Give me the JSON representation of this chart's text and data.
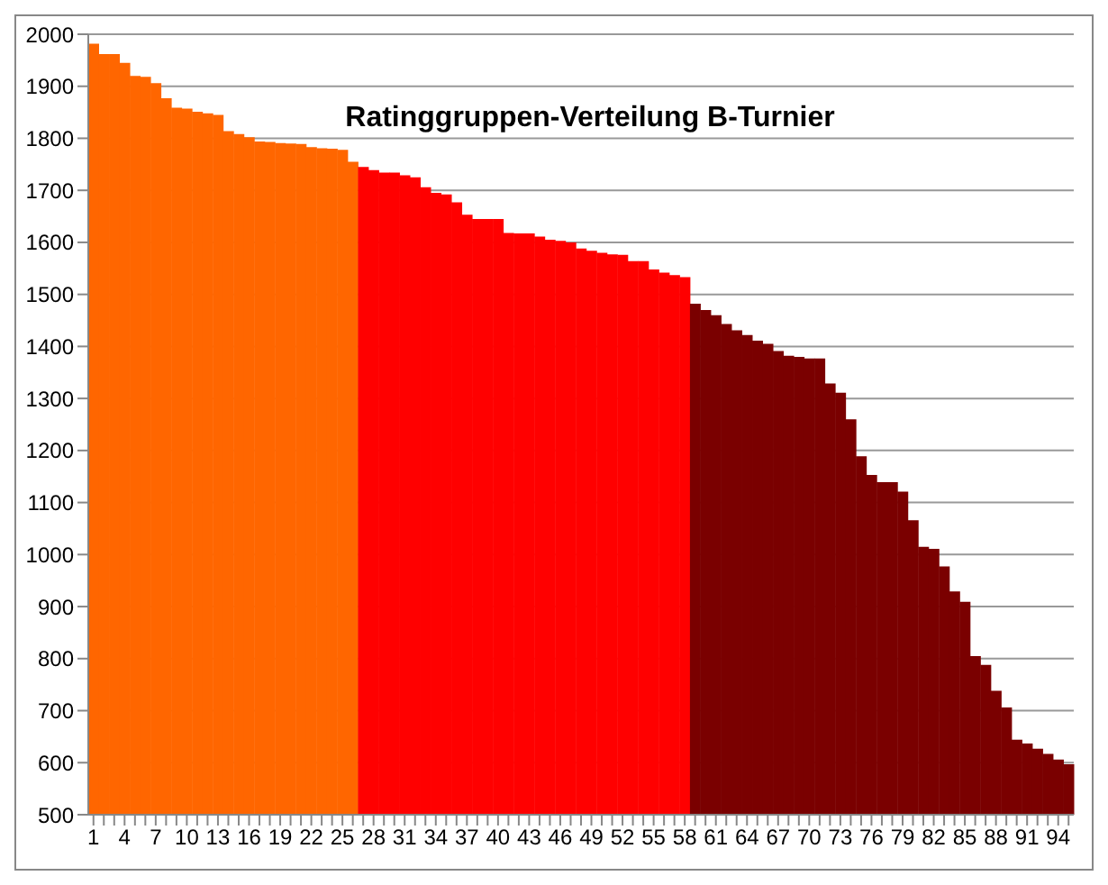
{
  "chart_data": {
    "type": "bar",
    "title": "Ratinggruppen-Verteilung B-Turnier",
    "categories": [
      "1",
      null,
      null,
      "4",
      null,
      null,
      "7",
      null,
      null,
      "10",
      null,
      null,
      "13",
      null,
      null,
      "16",
      null,
      null,
      "19",
      null,
      null,
      "22",
      null,
      null,
      "25",
      null,
      null,
      "28",
      null,
      null,
      "31",
      null,
      null,
      "34",
      null,
      null,
      "37",
      null,
      null,
      "40",
      null,
      null,
      "43",
      null,
      null,
      "46",
      null,
      null,
      "49",
      null,
      null,
      "52",
      null,
      null,
      "55",
      null,
      null,
      "58",
      null,
      null,
      "61",
      null,
      null,
      "64",
      null,
      null,
      "67",
      null,
      null,
      "70",
      null,
      null,
      "73",
      null,
      null,
      "76",
      null,
      null,
      "79",
      null,
      null,
      "82",
      null,
      null,
      "85",
      null,
      null,
      "88",
      null,
      null,
      "91",
      null,
      null,
      "94",
      null
    ],
    "values": [
      1982,
      1962,
      1962,
      1945,
      1920,
      1918,
      1906,
      1877,
      1859,
      1857,
      1851,
      1848,
      1845,
      1814,
      1808,
      1802,
      1794,
      1793,
      1791,
      1790,
      1789,
      1783,
      1781,
      1780,
      1778,
      1755,
      1745,
      1739,
      1734,
      1734,
      1729,
      1725,
      1706,
      1695,
      1692,
      1677,
      1653,
      1645,
      1645,
      1645,
      1618,
      1617,
      1617,
      1611,
      1605,
      1603,
      1600,
      1588,
      1584,
      1580,
      1577,
      1576,
      1564,
      1564,
      1548,
      1542,
      1537,
      1533,
      1482,
      1470,
      1460,
      1443,
      1431,
      1422,
      1411,
      1405,
      1391,
      1382,
      1380,
      1377,
      1377,
      1329,
      1311,
      1260,
      1189,
      1153,
      1139,
      1139,
      1121,
      1066,
      1015,
      1011,
      977,
      929,
      909,
      805,
      788,
      738,
      706,
      644,
      637,
      627,
      617,
      606,
      597
    ],
    "colors": [
      "#ff6600",
      "#ff6600",
      "#ff6600",
      "#ff6600",
      "#ff6600",
      "#ff6600",
      "#ff6600",
      "#ff6600",
      "#ff6600",
      "#ff6600",
      "#ff6600",
      "#ff6600",
      "#ff6600",
      "#ff6600",
      "#ff6600",
      "#ff6600",
      "#ff6600",
      "#ff6600",
      "#ff6600",
      "#ff6600",
      "#ff6600",
      "#ff6600",
      "#ff6600",
      "#ff6600",
      "#ff6600",
      "#ff6600",
      "#ff0000",
      "#ff0000",
      "#ff0000",
      "#ff0000",
      "#ff0000",
      "#ff0000",
      "#ff0000",
      "#ff0000",
      "#ff0000",
      "#ff0000",
      "#ff0000",
      "#ff0000",
      "#ff0000",
      "#ff0000",
      "#ff0000",
      "#ff0000",
      "#ff0000",
      "#ff0000",
      "#ff0000",
      "#ff0000",
      "#ff0000",
      "#ff0000",
      "#ff0000",
      "#ff0000",
      "#ff0000",
      "#ff0000",
      "#ff0000",
      "#ff0000",
      "#ff0000",
      "#ff0000",
      "#ff0000",
      "#ff0000",
      "#7a0000",
      "#7a0000",
      "#7a0000",
      "#7a0000",
      "#7a0000",
      "#7a0000",
      "#7a0000",
      "#7a0000",
      "#7a0000",
      "#7a0000",
      "#7a0000",
      "#7a0000",
      "#7a0000",
      "#7a0000",
      "#7a0000",
      "#7a0000",
      "#7a0000",
      "#7a0000",
      "#7a0000",
      "#7a0000",
      "#7a0000",
      "#7a0000",
      "#7a0000",
      "#7a0000",
      "#7a0000",
      "#7a0000",
      "#7a0000",
      "#7a0000",
      "#7a0000",
      "#7a0000",
      "#7a0000",
      "#7a0000",
      "#7a0000",
      "#7a0000",
      "#7a0000",
      "#7a0000",
      "#7a0000"
    ],
    "ylim": [
      500,
      2000
    ],
    "yticks": [
      500,
      600,
      700,
      800,
      900,
      1000,
      1100,
      1200,
      1300,
      1400,
      1500,
      1600,
      1700,
      1800,
      1900,
      2000
    ],
    "grid": "y",
    "legend": false
  }
}
